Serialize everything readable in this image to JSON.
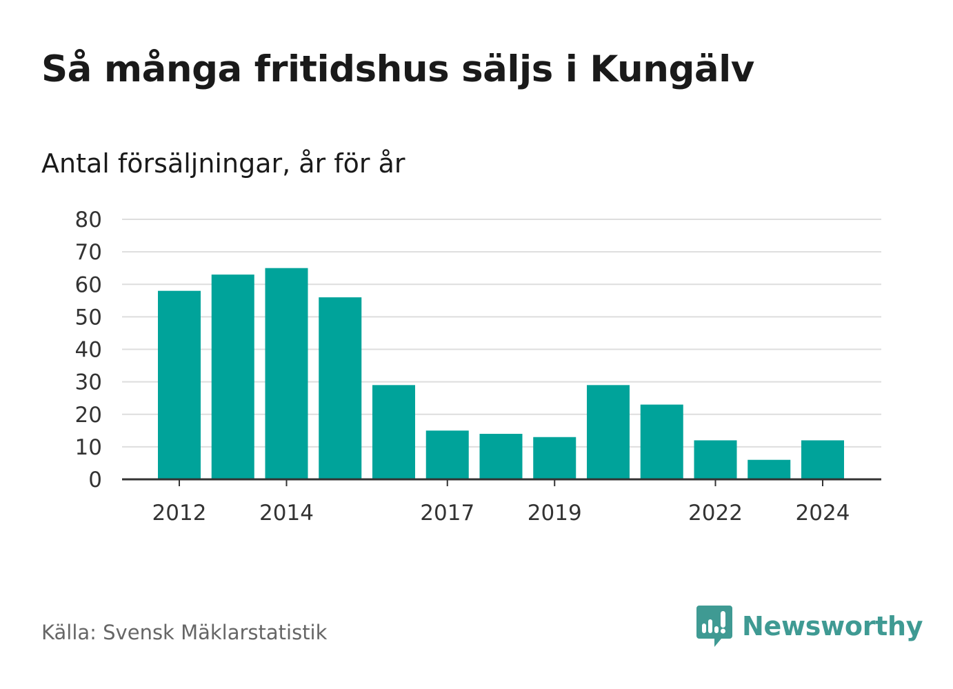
{
  "header": {
    "title": "Så många fritidshus säljs i Kungälv",
    "subtitle": "Antal försäljningar, år för år"
  },
  "footer": {
    "source": "Källa: Svensk Mäklarstatistik",
    "brand": "Newsworthy"
  },
  "colors": {
    "bar": "#00a39a",
    "grid": "#dddddd",
    "axis": "#333333",
    "brand": "#3f9a93"
  },
  "icons": {
    "brand_logo": "bar-chart-speech-bubble-icon"
  },
  "chart_data": {
    "type": "bar",
    "categories": [
      "2012",
      "2013",
      "2014",
      "2015",
      "2016",
      "2017",
      "2018",
      "2019",
      "2020",
      "2021",
      "2022",
      "2023",
      "2024"
    ],
    "values": [
      58,
      63,
      65,
      56,
      29,
      15,
      14,
      13,
      29,
      23,
      12,
      6,
      12
    ],
    "x_tick_labels": [
      "2012",
      "2014",
      "2017",
      "2019",
      "2022",
      "2024"
    ],
    "y_ticks": [
      0,
      10,
      20,
      30,
      40,
      50,
      60,
      70,
      80
    ],
    "ylim": [
      0,
      80
    ],
    "grid": true,
    "legend": false
  }
}
